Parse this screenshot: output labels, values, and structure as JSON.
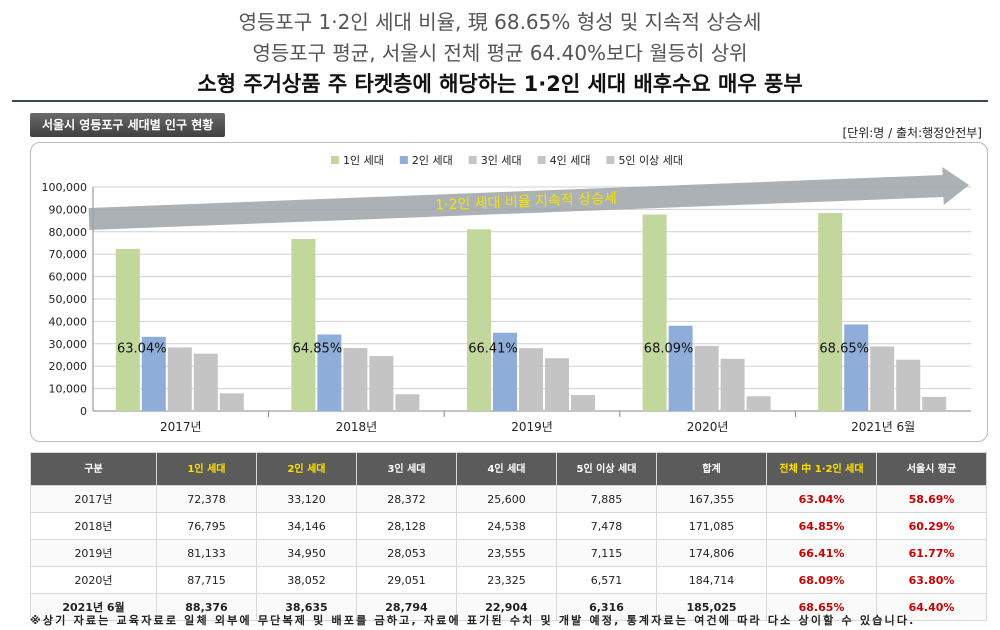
{
  "header": {
    "line1": "영등포구 1·2인 세대 비율, 現 68.65% 형성 및 지속적 상승세",
    "line2": "영등포구 평균, 서울시 전체 평균 64.40%보다 월등히 상위",
    "line3": "소형 주거상품 주 타켓층에 해당하는 1·2인 세대 배후수요 매우 풍부"
  },
  "section": {
    "title": "서울시 영등포구 세대별 인구 현황",
    "unit_note": "[단위:명 / 출처:행정안전부]"
  },
  "colors": {
    "one_person": "#c2d79b",
    "two_person": "#8eadd8",
    "three_person": "#c4c4c4",
    "four_person": "#c4c4c4",
    "five_plus": "#c4c4c4",
    "arrow": "#9ea3a8",
    "arrow_text": "#f2e600",
    "grid": "#d0d0d0"
  },
  "chart_data": {
    "type": "bar",
    "categories": [
      "2017년",
      "2018년",
      "2019년",
      "2020년",
      "2021년 6월"
    ],
    "series": [
      {
        "name": "1인 세대",
        "values": [
          72378,
          76795,
          81133,
          87715,
          88376
        ]
      },
      {
        "name": "2인 세대",
        "values": [
          33120,
          34146,
          34950,
          38052,
          38635
        ]
      },
      {
        "name": "3인 세대",
        "values": [
          28372,
          28128,
          28053,
          29051,
          28794
        ]
      },
      {
        "name": "4인 세대",
        "values": [
          25600,
          24538,
          23555,
          23325,
          22904
        ]
      },
      {
        "name": "5인 이상 세대",
        "values": [
          7885,
          7478,
          7115,
          6571,
          6316
        ]
      }
    ],
    "bar_labels": [
      "63.04%",
      "64.85%",
      "66.41%",
      "68.09%",
      "68.65%"
    ],
    "y_ticks": [
      "0",
      "10,000",
      "20,000",
      "30,000",
      "40,000",
      "50,000",
      "60,000",
      "70,000",
      "80,000",
      "90,000",
      "100,000"
    ],
    "ylim": [
      0,
      100000
    ],
    "grid": true,
    "legend_position": "top-center",
    "trend_arrow_label": "1·2인 세대 비율 지속적 상승세"
  },
  "table": {
    "headers": [
      "구분",
      "1인 세대",
      "2인 세대",
      "3인 세대",
      "4인 세대",
      "5인 이상 세대",
      "합계",
      "전체 中 1·2인 세대",
      "서울시 평균"
    ],
    "rows": [
      [
        "2017년",
        "72,378",
        "33,120",
        "28,372",
        "25,600",
        "7,885",
        "167,355",
        "63.04%",
        "58.69%"
      ],
      [
        "2018년",
        "76,795",
        "34,146",
        "28,128",
        "24,538",
        "7,478",
        "171,085",
        "64.85%",
        "60.29%"
      ],
      [
        "2019년",
        "81,133",
        "34,950",
        "28,053",
        "23,555",
        "7,115",
        "174,806",
        "66.41%",
        "61.77%"
      ],
      [
        "2020년",
        "87,715",
        "38,052",
        "29,051",
        "23,325",
        "6,571",
        "184,714",
        "68.09%",
        "63.80%"
      ],
      [
        "2021년 6월",
        "88,376",
        "38,635",
        "28,794",
        "22,904",
        "6,316",
        "185,025",
        "68.65%",
        "64.40%"
      ]
    ]
  },
  "footnote": "※상기 자료는 교육자료로 일체 외부에 무단복제 및 배포를 금하고, 자료에 표기된 수치 및 개발 예정, 통계자료는 여건에 따라 다소 상이할 수 있습니다."
}
